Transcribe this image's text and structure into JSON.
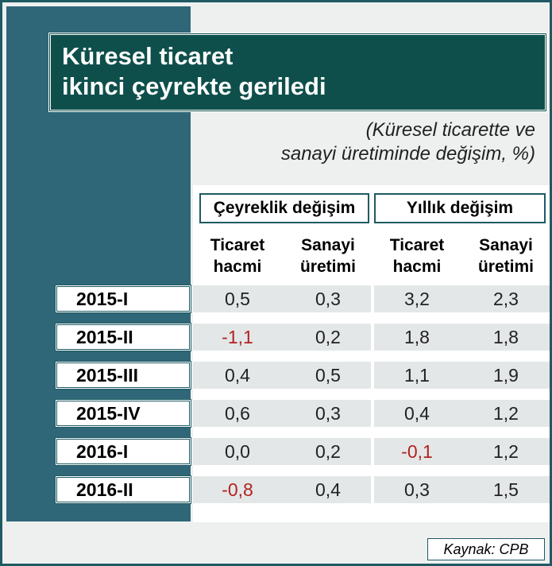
{
  "header": {
    "title": [
      "Küresel ticaret",
      "ikinci çeyrekte geriledi"
    ],
    "subtitle": [
      "(Küresel ticarette ve",
      "sanayi üretiminde değişim, %)"
    ]
  },
  "table": {
    "groups": [
      "Çeyreklik değişim",
      "Yıllık değişim"
    ],
    "columns": [
      [
        "Ticaret",
        "hacmi"
      ],
      [
        "Sanayi",
        "üretimi"
      ],
      [
        "Ticaret",
        "hacmi"
      ],
      [
        "Sanayi",
        "üretimi"
      ]
    ],
    "rows": [
      {
        "label": "2015-I",
        "values": [
          "0,5",
          "0,3",
          "3,2",
          "2,3"
        ]
      },
      {
        "label": "2015-II",
        "values": [
          "-1,1",
          "0,2",
          "1,8",
          "1,8"
        ]
      },
      {
        "label": "2015-III",
        "values": [
          "0,4",
          "0,5",
          "1,1",
          "1,9"
        ]
      },
      {
        "label": "2015-IV",
        "values": [
          "0,6",
          "0,3",
          "0,4",
          "1,2"
        ]
      },
      {
        "label": "2016-I",
        "values": [
          "0,0",
          "0,2",
          "-0,1",
          "1,2"
        ]
      },
      {
        "label": "2016-II",
        "values": [
          "-0,8",
          "0,4",
          "0,3",
          "1,5"
        ]
      }
    ]
  },
  "source": "Kaynak: CPB"
}
